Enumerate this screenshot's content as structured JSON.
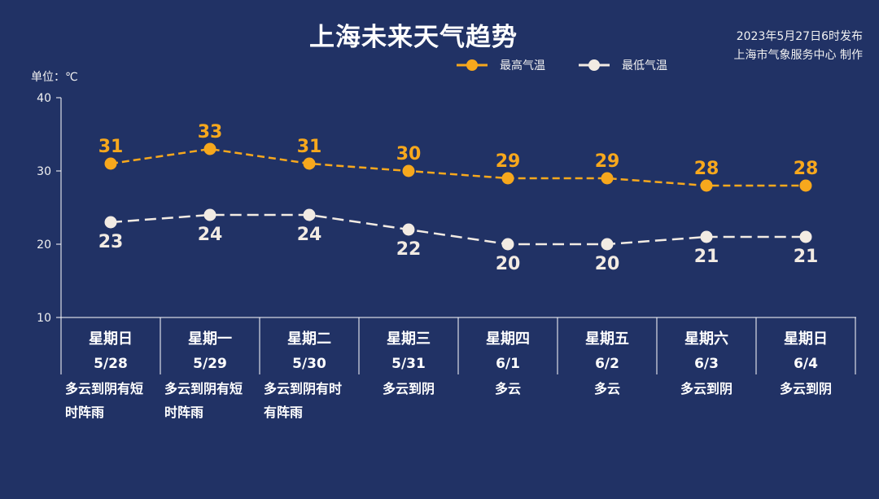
{
  "title": "上海未来天气趋势",
  "publish_time": "2023年5月27日6时发布",
  "producer": "上海市气象服务中心 制作",
  "unit_label": "单位：℃",
  "colors": {
    "background": "#213265",
    "high": "#f7a81d",
    "low": "#f2ebe3"
  },
  "chart_data": {
    "type": "line",
    "title": "上海未来天气趋势",
    "ylabel": "单位：℃",
    "ylim": [
      10,
      40
    ],
    "yticks": [
      10,
      20,
      30,
      40
    ],
    "grid": false,
    "legend_position": "top-right",
    "categories": [
      "星期日",
      "星期一",
      "星期二",
      "星期三",
      "星期四",
      "星期五",
      "星期六",
      "星期日"
    ],
    "dates": [
      "5/28",
      "5/29",
      "5/30",
      "5/31",
      "6/1",
      "6/2",
      "6/3",
      "6/4"
    ],
    "weather": [
      "多云到阴有短时阵雨",
      "多云到阴有短时阵雨",
      "多云到阴有时有阵雨",
      "多云到阴",
      "多云",
      "多云",
      "多云到阴",
      "多云到阴"
    ],
    "series": [
      {
        "name": "最高气温",
        "values": [
          31,
          33,
          31,
          30,
          29,
          29,
          28,
          28
        ],
        "color": "#f7a81d"
      },
      {
        "name": "最低气温",
        "values": [
          23,
          24,
          24,
          22,
          20,
          20,
          21,
          21
        ],
        "color": "#f2ebe3"
      }
    ]
  }
}
